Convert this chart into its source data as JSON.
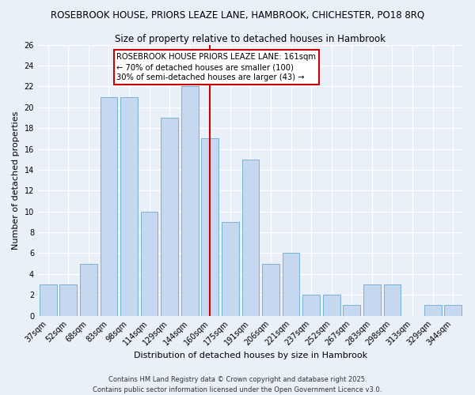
{
  "title": "ROSEBROOK HOUSE, PRIORS LEAZE LANE, HAMBROOK, CHICHESTER, PO18 8RQ",
  "subtitle": "Size of property relative to detached houses in Hambrook",
  "xlabel": "Distribution of detached houses by size in Hambrook",
  "ylabel": "Number of detached properties",
  "categories": [
    "37sqm",
    "52sqm",
    "68sqm",
    "83sqm",
    "98sqm",
    "114sqm",
    "129sqm",
    "144sqm",
    "160sqm",
    "175sqm",
    "191sqm",
    "206sqm",
    "221sqm",
    "237sqm",
    "252sqm",
    "267sqm",
    "283sqm",
    "298sqm",
    "313sqm",
    "329sqm",
    "344sqm"
  ],
  "values": [
    3,
    3,
    5,
    21,
    21,
    10,
    19,
    22,
    17,
    9,
    15,
    5,
    6,
    2,
    2,
    1,
    3,
    3,
    0,
    1,
    1
  ],
  "bar_color": "#c5d8f0",
  "bar_edge_color": "#7ab0d8",
  "vline_color": "#cc0000",
  "annotation_text": "ROSEBROOK HOUSE PRIORS LEAZE LANE: 161sqm\n← 70% of detached houses are smaller (100)\n30% of semi-detached houses are larger (43) →",
  "annotation_box_color": "#ffffff",
  "annotation_box_edge": "#cc0000",
  "ylim": [
    0,
    26
  ],
  "yticks": [
    0,
    2,
    4,
    6,
    8,
    10,
    12,
    14,
    16,
    18,
    20,
    22,
    24,
    26
  ],
  "background_color": "#eaf0f8",
  "grid_color": "#ffffff",
  "title_fontsize": 8.5,
  "subtitle_fontsize": 8.5,
  "axis_label_fontsize": 8.0,
  "tick_fontsize": 7.0,
  "annotation_fontsize": 7.2,
  "footer_line1": "Contains HM Land Registry data © Crown copyright and database right 2025.",
  "footer_line2": "Contains public sector information licensed under the Open Government Licence v3.0.",
  "footer_fontsize": 6.0
}
